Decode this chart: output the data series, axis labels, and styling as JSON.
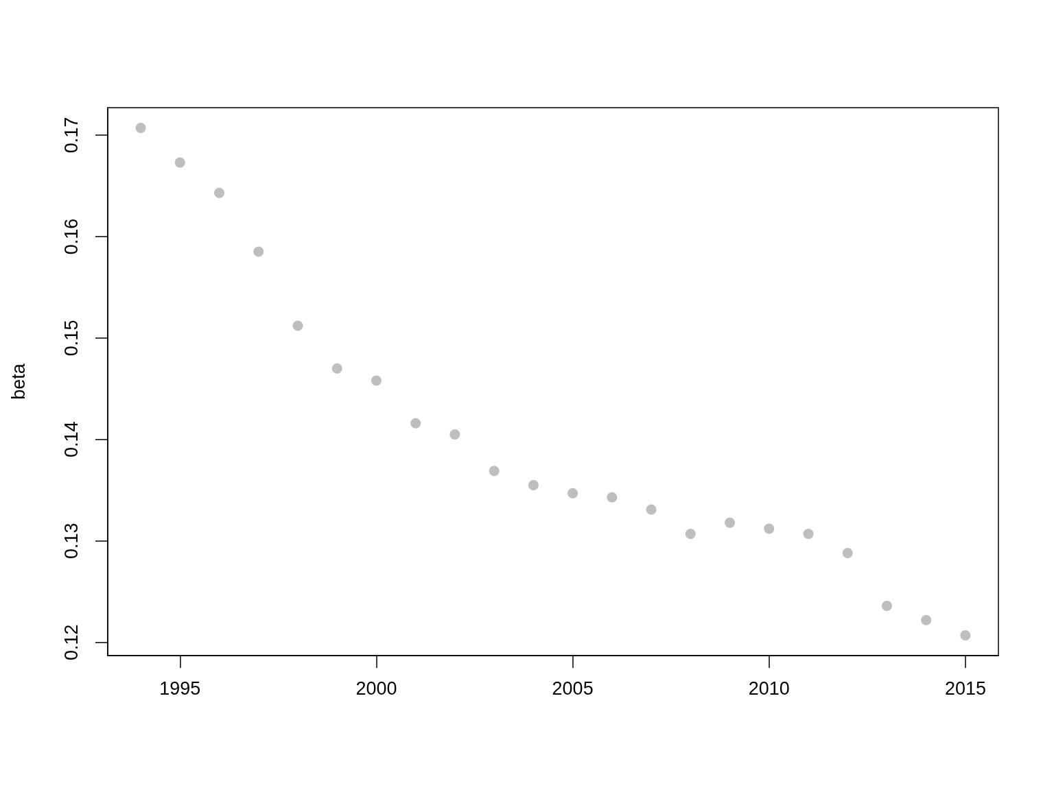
{
  "chart_data": {
    "type": "scatter",
    "ylabel": "beta",
    "x": [
      1994,
      1995,
      1996,
      1997,
      1998,
      1999,
      2000,
      2001,
      2002,
      2003,
      2004,
      2005,
      2006,
      2007,
      2008,
      2009,
      2010,
      2011,
      2012,
      2013,
      2014,
      2015
    ],
    "series": [
      {
        "color": "#bebebe",
        "values": [
          0.1707,
          0.1673,
          0.1643,
          0.1585,
          0.1512,
          0.147,
          0.1458,
          0.1416,
          0.1405,
          0.1369,
          0.1355,
          0.1347,
          0.1343,
          0.1331,
          0.1307,
          0.1318,
          0.1312,
          0.1307,
          0.1288,
          0.1236,
          0.1222,
          0.1207
        ]
      }
    ],
    "xlim": [
      1993.16,
      2015.84
    ],
    "xticks": [
      1995,
      2000,
      2005,
      2010,
      2015
    ],
    "ylim": [
      0.1187,
      0.1727
    ],
    "yticks": [
      0.12,
      0.13,
      0.14,
      0.15,
      0.16,
      0.17
    ],
    "grid": false,
    "marker": "circle"
  }
}
